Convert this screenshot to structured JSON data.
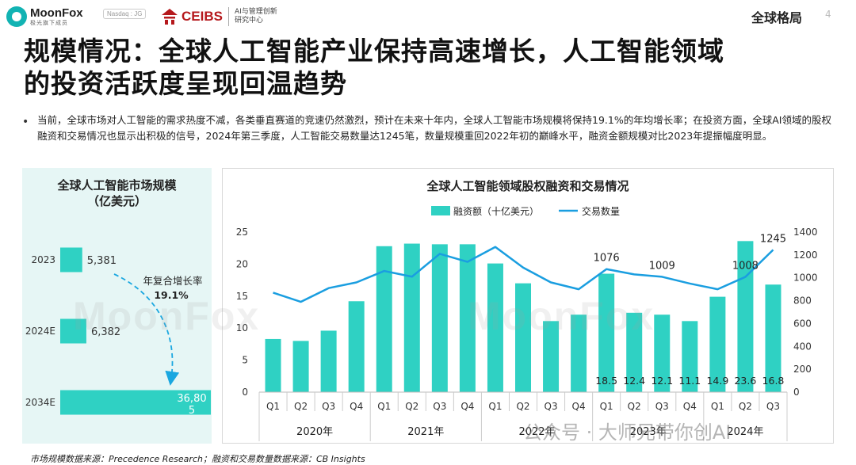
{
  "header": {
    "brand_name": "MoonFox",
    "brand_sub": "极光旗下成员",
    "ticker": "Nasdaq : JG",
    "partner_name": "CEIBS",
    "partner_sub_line1": "AI与管理创新",
    "partner_sub_line2": "研究中心",
    "section_tag": "全球格局",
    "page_number": "4"
  },
  "title": {
    "line1": "规模情况：全球人工智能产业保持高速增长，人工智能领域",
    "line2": "的投资活跃度呈现回温趋势"
  },
  "bullet": "当前，全球市场对人工智能的需求热度不减，各类垂直赛道的竞速仍然激烈，预计在未来十年内，全球人工智能市场规模将保持19.1%的年均增长率；在投资方面，全球AI领域的股权融资和交易情况也显示出积极的信号，2024年第三季度，人工智能交易数量达1245笔，数量规模重回2022年初的巅峰水平，融资金额规模对比2023年提振幅度明显。",
  "source_note": "市场规模数据来源：Precedence Research；融资和交易数量数据来源：CB Insights",
  "watermarks": [
    "MoonFox",
    "MoonFox"
  ],
  "credit": "公众号 · 大师兄带你创AI",
  "colors": {
    "teal": "#2fd1c3",
    "blue": "#1a9ee0",
    "panel_bg": "#e6f6f5",
    "arrow": "#1aa7e0"
  },
  "chart_data": [
    {
      "type": "bar",
      "orientation": "horizontal",
      "title_line1": "全球人工智能市场规模",
      "title_line2": "（亿美元）",
      "categories": [
        "2023",
        "2024E",
        "2034E"
      ],
      "values": [
        5381,
        6382,
        36805
      ],
      "value_labels": [
        "5,381",
        "6,382",
        "36,80\n5"
      ],
      "annotation_line1": "年复合增长率",
      "annotation_line2": "19.1%"
    },
    {
      "type": "bar+line",
      "title": "全球人工智能领域股权融资和交易情况",
      "quarters": [
        "Q1",
        "Q2",
        "Q3",
        "Q4",
        "Q1",
        "Q2",
        "Q3",
        "Q4",
        "Q1",
        "Q2",
        "Q3",
        "Q4",
        "Q1",
        "Q2",
        "Q3",
        "Q4",
        "Q1",
        "Q2",
        "Q3"
      ],
      "years": [
        {
          "label": "2020年",
          "span": 4
        },
        {
          "label": "2021年",
          "span": 4
        },
        {
          "label": "2022年",
          "span": 4
        },
        {
          "label": "2023年",
          "span": 4
        },
        {
          "label": "2024年",
          "span": 3
        }
      ],
      "series": [
        {
          "name": "融资额（十亿美元）",
          "type": "bar",
          "axis": "left",
          "values": [
            8.3,
            8.0,
            9.6,
            14.2,
            22.8,
            23.2,
            23.1,
            23.1,
            20.1,
            17.0,
            11.1,
            12.1,
            18.5,
            12.4,
            12.1,
            11.1,
            14.9,
            23.6,
            16.8
          ],
          "labels": [
            "",
            "",
            "",
            "",
            "",
            "",
            "",
            "",
            "",
            "",
            "",
            "",
            "18.5",
            "12.4",
            "12.1",
            "11.1",
            "14.9",
            "23.6",
            "16.8"
          ]
        },
        {
          "name": "交易数量",
          "type": "line",
          "axis": "right",
          "values": [
            870,
            790,
            910,
            960,
            1060,
            1010,
            1210,
            1140,
            1270,
            1090,
            960,
            900,
            1076,
            1030,
            1009,
            950,
            900,
            1008,
            1245
          ],
          "labels": [
            "",
            "",
            "",
            "",
            "",
            "",
            "",
            "",
            "",
            "",
            "",
            "",
            "1076",
            "",
            "1009",
            "",
            "",
            "1008",
            "1245"
          ]
        }
      ],
      "y_left": {
        "min": 0,
        "max": 25,
        "ticks": [
          "0",
          "5",
          "10",
          "15",
          "20",
          "25"
        ]
      },
      "y_right": {
        "min": 0,
        "max": 1400,
        "ticks": [
          "0",
          "200",
          "400",
          "600",
          "800",
          "1000",
          "1200",
          "1400"
        ]
      },
      "legend_position": "top-center",
      "grid": false
    }
  ]
}
